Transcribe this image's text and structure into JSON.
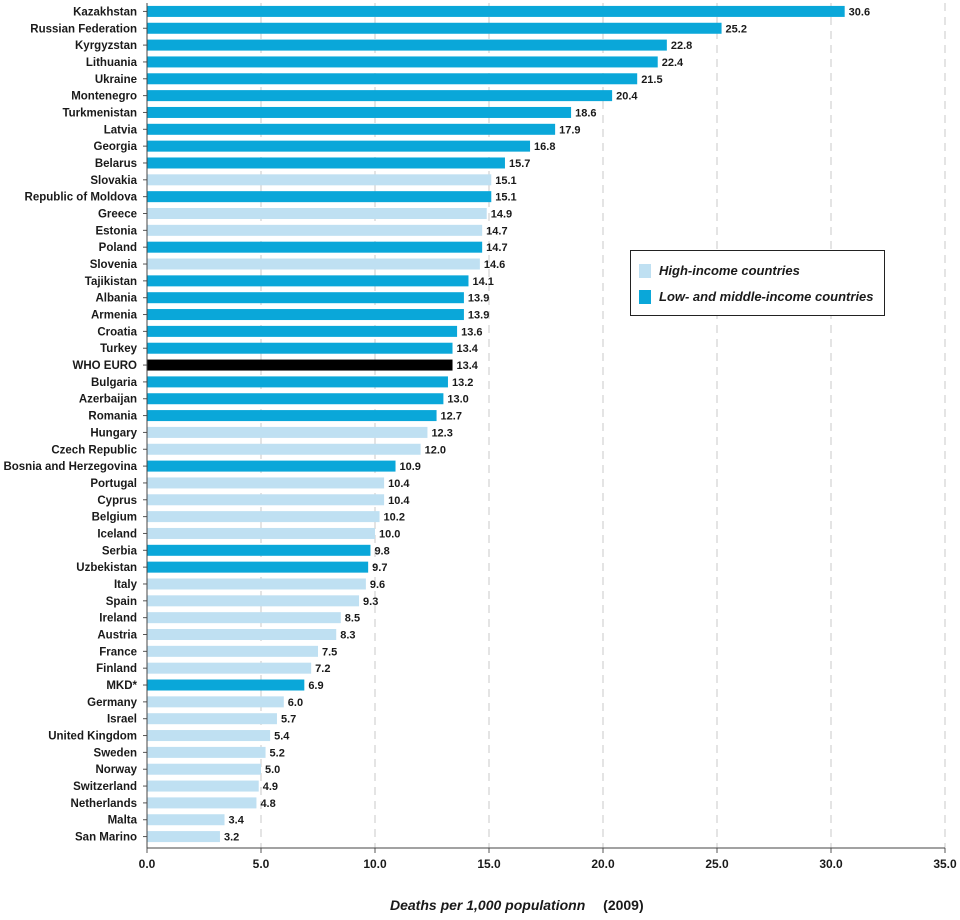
{
  "chart_data": {
    "type": "bar",
    "orientation": "horizontal",
    "categories": [
      "Kazakhstan",
      "Russian Federation",
      "Kyrgyzstan",
      "Lithuania",
      "Ukraine",
      "Montenegro",
      "Turkmenistan",
      "Latvia",
      "Georgia",
      "Belarus",
      "Slovakia",
      "Republic of Moldova",
      "Greece",
      "Estonia",
      "Poland",
      "Slovenia",
      "Tajikistan",
      "Albania",
      "Armenia",
      "Croatia",
      "Turkey",
      "WHO EURO",
      "Bulgaria",
      "Azerbaijan",
      "Romania",
      "Hungary",
      "Czech Republic",
      "Bosnia and Herzegovina",
      "Portugal",
      "Cyprus",
      "Belgium",
      "Iceland",
      "Serbia",
      "Uzbekistan",
      "Italy",
      "Spain",
      "Ireland",
      "Austria",
      "France",
      "Finland",
      "MKD*",
      "Germany",
      "Israel",
      "United Kingdom",
      "Sweden",
      "Norway",
      "Switzerland",
      "Netherlands",
      "Malta",
      "San Marino"
    ],
    "values": [
      30.6,
      25.2,
      22.8,
      22.4,
      21.5,
      20.4,
      18.6,
      17.9,
      16.8,
      15.7,
      15.1,
      15.1,
      14.9,
      14.7,
      14.7,
      14.6,
      14.1,
      13.9,
      13.9,
      13.6,
      13.4,
      13.4,
      13.2,
      13.0,
      12.7,
      12.3,
      12.0,
      10.9,
      10.4,
      10.4,
      10.2,
      10.0,
      9.8,
      9.7,
      9.6,
      9.3,
      8.5,
      8.3,
      7.5,
      7.2,
      6.9,
      6.0,
      5.7,
      5.4,
      5.2,
      5.0,
      4.9,
      4.8,
      3.4,
      3.2
    ],
    "value_labels": [
      "30.6",
      "25.2",
      "22.8",
      "22.4",
      "21.5",
      "20.4",
      "18.6",
      "17.9",
      "16.8",
      "15.7",
      "15.1",
      "15.1",
      "14.9",
      "14.7",
      "14.7",
      "14.6",
      "14.1",
      "13.9",
      "13.9",
      "13.6",
      "13.4",
      "13.4",
      "13.2",
      "13.0",
      "12.7",
      "12.3",
      "12.0",
      "10.9",
      "10.4",
      "10.4",
      "10.2",
      "10.0",
      "9.8",
      "9.7",
      "9.6",
      "9.3",
      "8.5",
      "8.3",
      "7.5",
      "7.2",
      "6.9",
      "6.0",
      "5.7",
      "5.4",
      "5.2",
      "5.0",
      "4.9",
      "4.8",
      "3.4",
      "3.2"
    ],
    "groups": [
      "low",
      "low",
      "low",
      "low",
      "low",
      "low",
      "low",
      "low",
      "low",
      "low",
      "high",
      "low",
      "high",
      "high",
      "low",
      "high",
      "low",
      "low",
      "low",
      "low",
      "low",
      "euro",
      "low",
      "low",
      "low",
      "high",
      "high",
      "low",
      "high",
      "high",
      "high",
      "high",
      "low",
      "low",
      "high",
      "high",
      "high",
      "high",
      "high",
      "high",
      "low",
      "high",
      "high",
      "high",
      "high",
      "high",
      "high",
      "high",
      "high",
      "high"
    ],
    "colors": {
      "high": "#bfe0f2",
      "low": "#0aa7d9",
      "euro": "#000000"
    },
    "legend": [
      {
        "label": "High-income countries",
        "group": "high"
      },
      {
        "label": "Low- and middle-income countries",
        "group": "low"
      }
    ],
    "legend_position": "right",
    "xlim": [
      0,
      35
    ],
    "xticks": [
      0,
      5,
      10,
      15,
      20,
      25,
      30,
      35
    ],
    "xtick_labels": [
      "0.0",
      "5.0",
      "10.0",
      "15.0",
      "20.0",
      "25.0",
      "30.0",
      "35.0"
    ],
    "grid": "vertical-dashed",
    "xlabel": "Deaths per 1,000 populationn",
    "xlabel_suffix": "(2009)",
    "title": ""
  }
}
